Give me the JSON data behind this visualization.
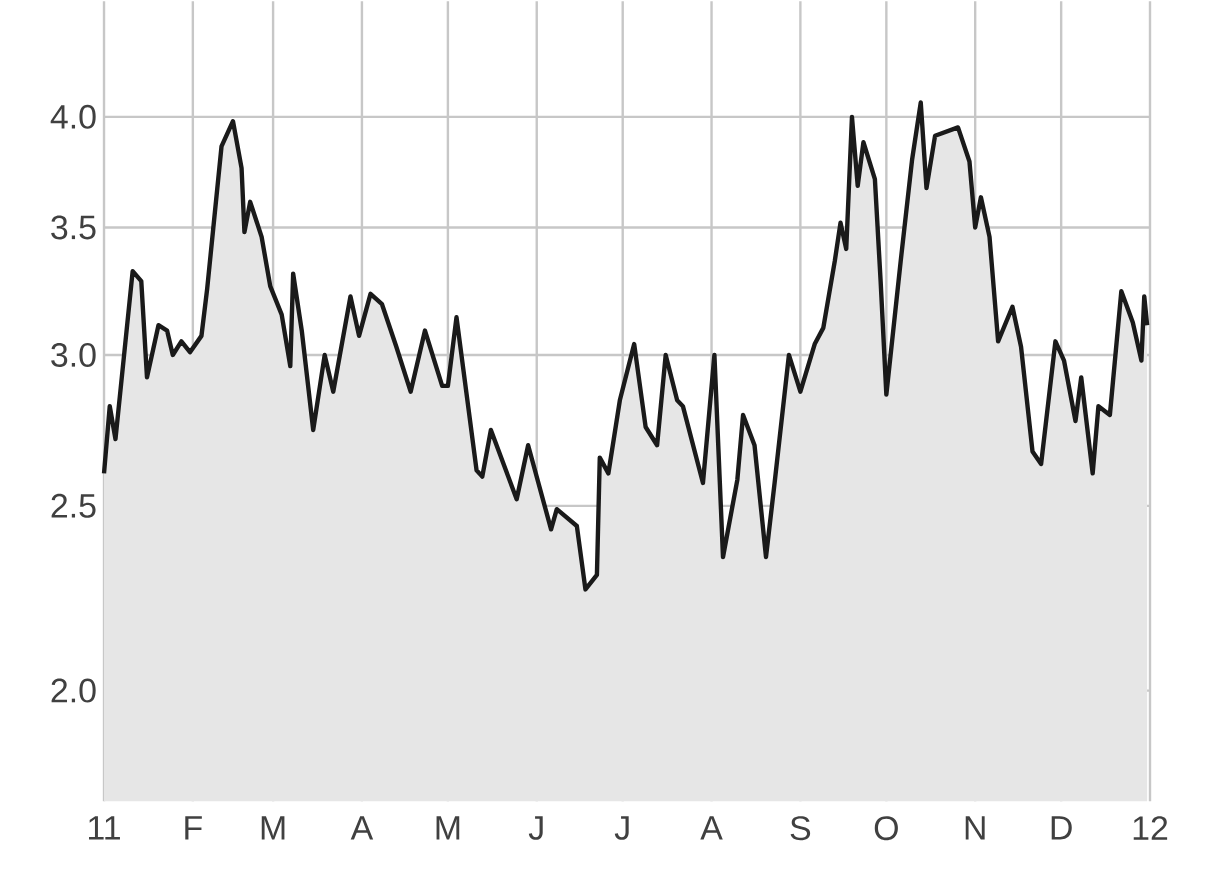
{
  "chart_data": {
    "type": "area",
    "log": "y",
    "grid": true,
    "xlim": [
      "2011-01-01",
      "2012-01-01"
    ],
    "ylim": [
      1.75,
      4.6
    ],
    "xticks": [
      {
        "value": "2011-01-01",
        "label": "11"
      },
      {
        "value": "2011-02-01",
        "label": "F"
      },
      {
        "value": "2011-03-01",
        "label": "M"
      },
      {
        "value": "2011-04-01",
        "label": "A"
      },
      {
        "value": "2011-05-01",
        "label": "M"
      },
      {
        "value": "2011-06-01",
        "label": "J"
      },
      {
        "value": "2011-07-01",
        "label": "J"
      },
      {
        "value": "2011-08-01",
        "label": "A"
      },
      {
        "value": "2011-09-01",
        "label": "S"
      },
      {
        "value": "2011-10-01",
        "label": "O"
      },
      {
        "value": "2011-11-01",
        "label": "N"
      },
      {
        "value": "2011-12-01",
        "label": "D"
      },
      {
        "value": "2012-01-01",
        "label": "12"
      }
    ],
    "yticks": [
      {
        "value": 2,
        "label": "2.0"
      },
      {
        "value": 2.5,
        "label": "2.5"
      },
      {
        "value": 3,
        "label": "3.0"
      },
      {
        "value": 3.5,
        "label": "3.5"
      },
      {
        "value": 4,
        "label": "4.0"
      }
    ],
    "series": [
      {
        "color": "#1a1a1a",
        "x": [
          "2011-01-01",
          "2011-01-03",
          "2011-01-05",
          "2011-01-11",
          "2011-01-14",
          "2011-01-16",
          "2011-01-20",
          "2011-01-23",
          "2011-01-25",
          "2011-01-28",
          "2011-01-31",
          "2011-02-04",
          "2011-02-06",
          "2011-02-11",
          "2011-02-15",
          "2011-02-18",
          "2011-02-19",
          "2011-02-21",
          "2011-02-25",
          "2011-02-28",
          "2011-03-04",
          "2011-03-07",
          "2011-03-08",
          "2011-03-11",
          "2011-03-15",
          "2011-03-19",
          "2011-03-22",
          "2011-03-28",
          "2011-03-31",
          "2011-04-04",
          "2011-04-08",
          "2011-04-13",
          "2011-04-18",
          "2011-04-23",
          "2011-04-29",
          "2011-05-01",
          "2011-05-04",
          "2011-05-11",
          "2011-05-13",
          "2011-05-16",
          "2011-05-25",
          "2011-05-29",
          "2011-06-06",
          "2011-06-08",
          "2011-06-15",
          "2011-06-18",
          "2011-06-22",
          "2011-06-23",
          "2011-06-26",
          "2011-06-30",
          "2011-07-05",
          "2011-07-09",
          "2011-07-13",
          "2011-07-16",
          "2011-07-20",
          "2011-07-22",
          "2011-07-29",
          "2011-08-02",
          "2011-08-05",
          "2011-08-10",
          "2011-08-12",
          "2011-08-16",
          "2011-08-20",
          "2011-08-23",
          "2011-08-28",
          "2011-09-01",
          "2011-09-06",
          "2011-09-09",
          "2011-09-13",
          "2011-09-15",
          "2011-09-17",
          "2011-09-19",
          "2011-09-21",
          "2011-09-23",
          "2011-09-27",
          "2011-09-29",
          "2011-10-01",
          "2011-10-06",
          "2011-10-10",
          "2011-10-13",
          "2011-10-15",
          "2011-10-18",
          "2011-10-26",
          "2011-10-30",
          "2011-11-01",
          "2011-11-03",
          "2011-11-06",
          "2011-11-09",
          "2011-11-14",
          "2011-11-17",
          "2011-11-21",
          "2011-11-24",
          "2011-11-29",
          "2011-12-02",
          "2011-12-06",
          "2011-12-08",
          "2011-12-12",
          "2011-12-14",
          "2011-12-18",
          "2011-12-22",
          "2011-12-26",
          "2011-12-29",
          "2011-12-30",
          "2011-12-31"
        ],
        "values": [
          2.6,
          2.82,
          2.71,
          3.32,
          3.28,
          2.92,
          3.11,
          3.09,
          3.0,
          3.05,
          3.01,
          3.07,
          3.25,
          3.86,
          3.98,
          3.76,
          3.48,
          3.61,
          3.46,
          3.26,
          3.15,
          2.96,
          3.31,
          3.09,
          2.74,
          3.0,
          2.87,
          3.22,
          3.07,
          3.23,
          3.19,
          3.03,
          2.87,
          3.09,
          2.89,
          2.89,
          3.14,
          2.61,
          2.59,
          2.74,
          2.52,
          2.69,
          2.43,
          2.49,
          2.44,
          2.26,
          2.3,
          2.65,
          2.6,
          2.84,
          3.04,
          2.75,
          2.69,
          3.0,
          2.84,
          2.82,
          2.57,
          3.0,
          2.35,
          2.58,
          2.79,
          2.69,
          2.35,
          2.57,
          3.0,
          2.87,
          3.04,
          3.1,
          3.36,
          3.52,
          3.41,
          4.0,
          3.68,
          3.88,
          3.71,
          3.28,
          2.86,
          3.36,
          3.8,
          4.07,
          3.67,
          3.91,
          3.95,
          3.79,
          3.5,
          3.63,
          3.46,
          3.05,
          3.18,
          3.03,
          2.67,
          2.63,
          3.05,
          2.98,
          2.77,
          2.92,
          2.6,
          2.82,
          2.79,
          3.24,
          3.12,
          2.98,
          3.22,
          3.11
        ]
      }
    ]
  }
}
